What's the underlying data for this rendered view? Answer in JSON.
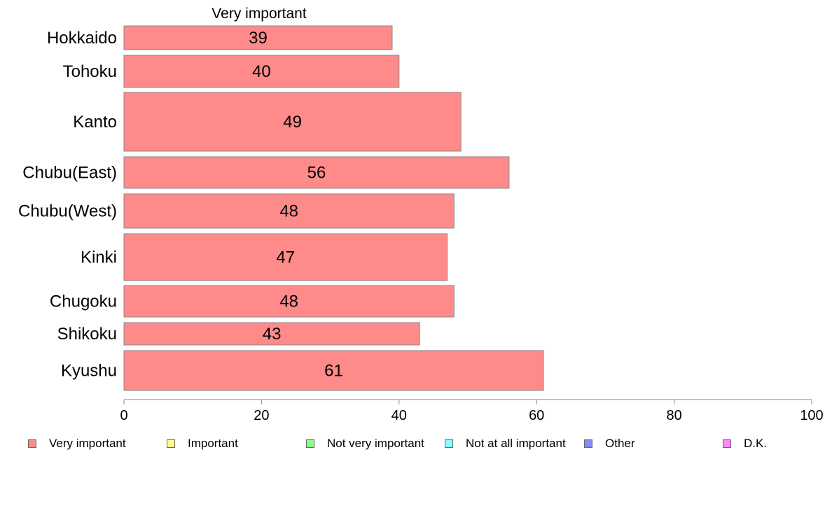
{
  "chart_data": {
    "type": "bar",
    "orientation": "horizontal",
    "title": "Very important",
    "categories": [
      "Hokkaido",
      "Tohoku",
      "Kanto",
      "Chubu(East)",
      "Chubu(West)",
      "Kinki",
      "Chugoku",
      "Shikoku",
      "Kyushu"
    ],
    "series": [
      {
        "name": "Very important",
        "values": [
          39,
          40,
          49,
          56,
          48,
          47,
          48,
          43,
          61
        ],
        "color": "#ff8a8a"
      }
    ],
    "xlim": [
      0,
      100
    ],
    "xticks": [
      0,
      20,
      40,
      60,
      80,
      100
    ],
    "grid": false,
    "data_labels": true,
    "legend_position": "bottom"
  },
  "legend": [
    {
      "label": "Very important",
      "color": "#ff8a8a"
    },
    {
      "label": "Important",
      "color": "#ffff88"
    },
    {
      "label": "Not very important",
      "color": "#88ff88"
    },
    {
      "label": "Not at all important",
      "color": "#88ffff"
    },
    {
      "label": "Other",
      "color": "#8888ff"
    },
    {
      "label": "D.K.",
      "color": "#ff88ff"
    }
  ]
}
